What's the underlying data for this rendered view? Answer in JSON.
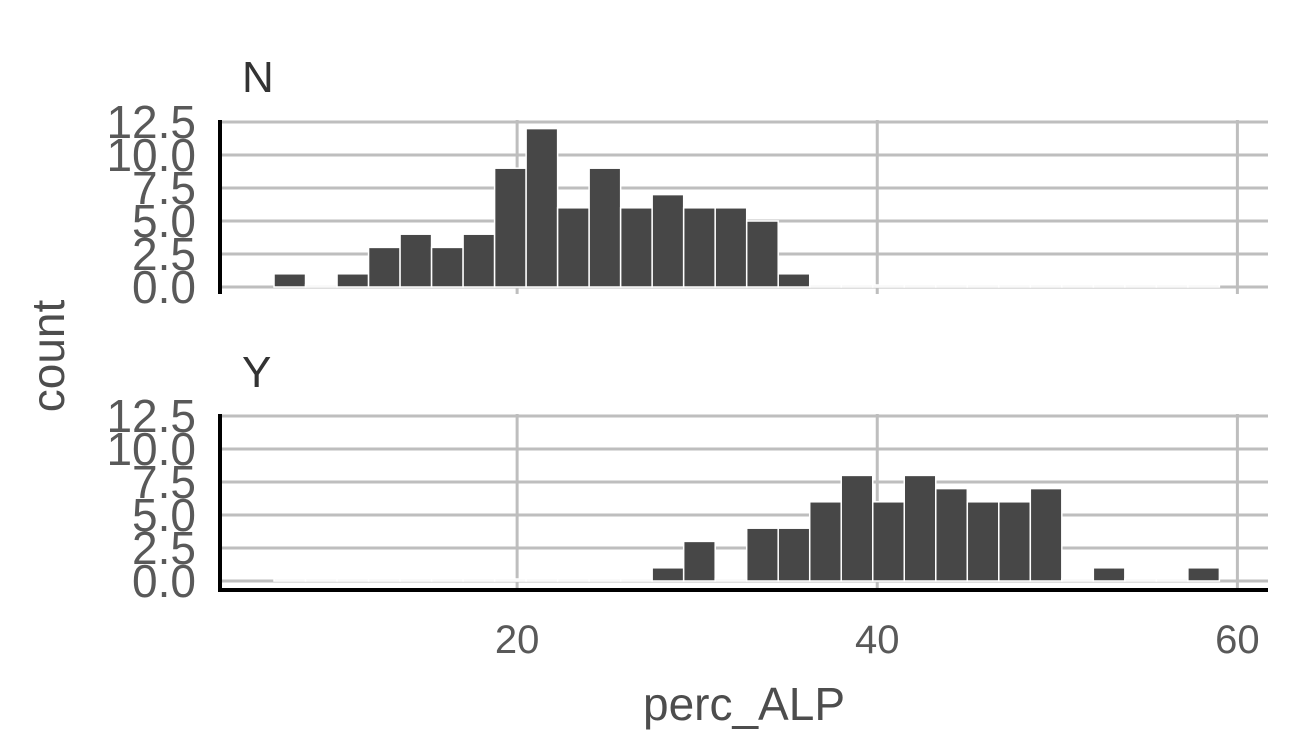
{
  "chart_data": {
    "type": "bar",
    "subtype": "histogram",
    "xlabel": "perc_ALP",
    "ylabel": "count",
    "xlim": [
      3.5,
      61.7
    ],
    "ylim": [
      0,
      12.5
    ],
    "x_ticks": [
      20,
      40,
      60
    ],
    "y_ticks": [
      0.0,
      2.5,
      5.0,
      7.5,
      10.0,
      12.5
    ],
    "y_tick_labels": [
      "0.0",
      "2.5",
      "5.0",
      "7.5",
      "10.0",
      "12.5"
    ],
    "bin_width": 1.75,
    "grid": true,
    "colors": {
      "bar": "#474747",
      "grid": "#bebebe",
      "axis": "#000000",
      "text": "#595959"
    },
    "panels": [
      {
        "label": "N",
        "bin_starts": [
          6.5,
          8.25,
          10.0,
          11.75,
          13.5,
          15.25,
          17.0,
          18.75,
          20.5,
          22.25,
          24.0,
          25.75,
          27.5,
          29.25,
          31.0,
          32.75,
          34.5,
          36.25,
          38.0,
          39.75,
          41.5,
          43.25,
          45.0,
          46.75,
          48.5,
          50.25,
          52.0,
          53.75,
          55.5,
          57.25
        ],
        "counts": [
          1,
          0,
          1,
          3,
          4,
          3,
          4,
          9,
          12,
          6,
          9,
          6,
          7,
          6,
          6,
          5,
          1,
          0,
          0,
          0,
          0,
          0,
          0,
          0,
          0,
          0,
          0,
          0,
          0,
          0
        ]
      },
      {
        "label": "Y",
        "bin_starts": [
          6.5,
          8.25,
          10.0,
          11.75,
          13.5,
          15.25,
          17.0,
          18.75,
          20.5,
          22.25,
          24.0,
          25.75,
          27.5,
          29.25,
          31.0,
          32.75,
          34.5,
          36.25,
          38.0,
          39.75,
          41.5,
          43.25,
          45.0,
          46.75,
          48.5,
          50.25,
          52.0,
          53.75,
          55.5,
          57.25
        ],
        "counts": [
          0,
          0,
          0,
          0,
          0,
          0,
          0,
          0,
          0,
          0,
          0,
          0,
          1,
          3,
          0,
          4,
          4,
          6,
          8,
          6,
          8,
          7,
          6,
          6,
          7,
          0,
          1,
          0,
          0,
          1
        ]
      }
    ]
  }
}
